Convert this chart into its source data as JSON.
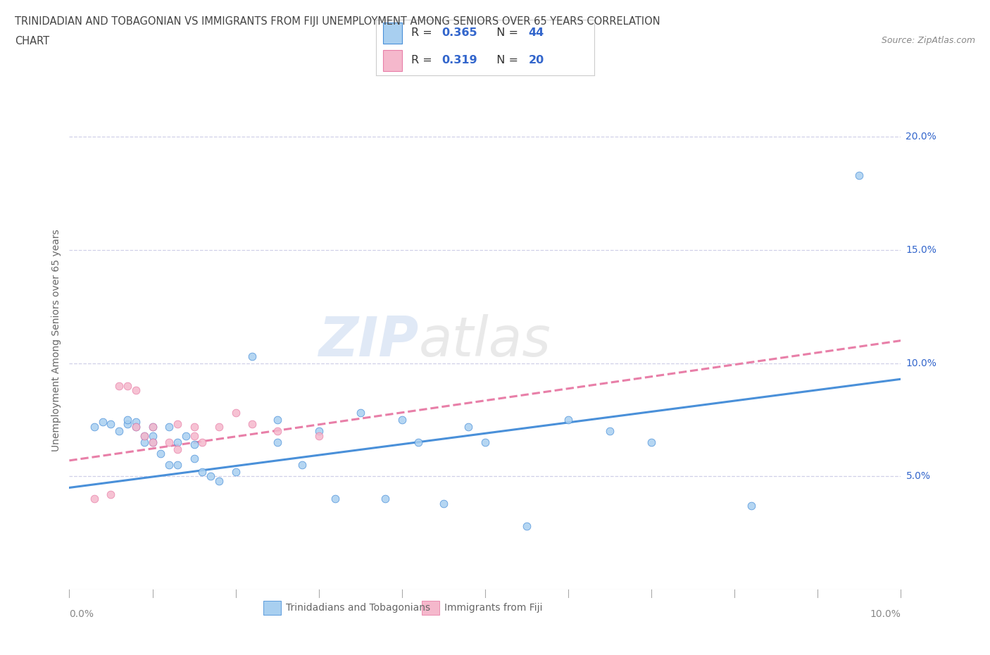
{
  "title_line1": "TRINIDADIAN AND TOBAGONIAN VS IMMIGRANTS FROM FIJI UNEMPLOYMENT AMONG SENIORS OVER 65 YEARS CORRELATION",
  "title_line2": "CHART",
  "source_text": "Source: ZipAtlas.com",
  "watermark_left": "ZIP",
  "watermark_right": "atlas",
  "ylabel": "Unemployment Among Seniors over 65 years",
  "xlim": [
    0.0,
    0.1
  ],
  "ylim": [
    0.0,
    0.22
  ],
  "xticks": [
    0.0,
    0.01,
    0.02,
    0.03,
    0.04,
    0.05,
    0.06,
    0.07,
    0.08,
    0.09,
    0.1
  ],
  "ytick_positions": [
    0.05,
    0.1,
    0.15,
    0.2
  ],
  "ytick_labels": [
    "5.0%",
    "10.0%",
    "15.0%",
    "20.0%"
  ],
  "xtick_label_left": "0.0%",
  "xtick_label_right": "10.0%",
  "legend_label1": "Trinidadians and Tobagonians",
  "legend_label2": "Immigrants from Fiji",
  "R1": "0.365",
  "N1": "44",
  "R2": "0.319",
  "N2": "20",
  "color_blue": "#a8cff0",
  "color_blue_line": "#4a90d9",
  "color_pink": "#f5b8cc",
  "color_pink_line": "#e87fa8",
  "color_text_blue": "#3366cc",
  "color_title": "#444444",
  "color_source": "#888888",
  "color_ylabel": "#666666",
  "color_ytick": "#3366cc",
  "color_xtick": "#888888",
  "color_gridline": "#d0d0e8",
  "blue_scatter_x": [
    0.003,
    0.004,
    0.005,
    0.006,
    0.007,
    0.007,
    0.008,
    0.008,
    0.009,
    0.009,
    0.01,
    0.01,
    0.01,
    0.011,
    0.012,
    0.012,
    0.013,
    0.013,
    0.014,
    0.015,
    0.015,
    0.016,
    0.017,
    0.018,
    0.02,
    0.022,
    0.025,
    0.025,
    0.028,
    0.03,
    0.032,
    0.035,
    0.038,
    0.04,
    0.042,
    0.045,
    0.048,
    0.05,
    0.055,
    0.06,
    0.065,
    0.07,
    0.082,
    0.095
  ],
  "blue_scatter_y": [
    0.072,
    0.074,
    0.073,
    0.07,
    0.073,
    0.075,
    0.074,
    0.072,
    0.068,
    0.065,
    0.072,
    0.068,
    0.065,
    0.06,
    0.072,
    0.055,
    0.065,
    0.055,
    0.068,
    0.064,
    0.058,
    0.052,
    0.05,
    0.048,
    0.052,
    0.103,
    0.075,
    0.065,
    0.055,
    0.07,
    0.04,
    0.078,
    0.04,
    0.075,
    0.065,
    0.038,
    0.072,
    0.065,
    0.028,
    0.075,
    0.07,
    0.065,
    0.037,
    0.183
  ],
  "pink_scatter_x": [
    0.003,
    0.005,
    0.006,
    0.007,
    0.008,
    0.008,
    0.009,
    0.01,
    0.01,
    0.012,
    0.013,
    0.013,
    0.015,
    0.015,
    0.016,
    0.018,
    0.02,
    0.022,
    0.025,
    0.03
  ],
  "pink_scatter_y": [
    0.04,
    0.042,
    0.09,
    0.09,
    0.088,
    0.072,
    0.068,
    0.072,
    0.065,
    0.065,
    0.073,
    0.062,
    0.072,
    0.068,
    0.065,
    0.072,
    0.078,
    0.073,
    0.07,
    0.068
  ],
  "blue_trend_x": [
    0.0,
    0.1
  ],
  "blue_trend_y": [
    0.045,
    0.093
  ],
  "pink_trend_x": [
    0.0,
    0.1
  ],
  "pink_trend_y": [
    0.057,
    0.11
  ],
  "bg_color": "#ffffff"
}
